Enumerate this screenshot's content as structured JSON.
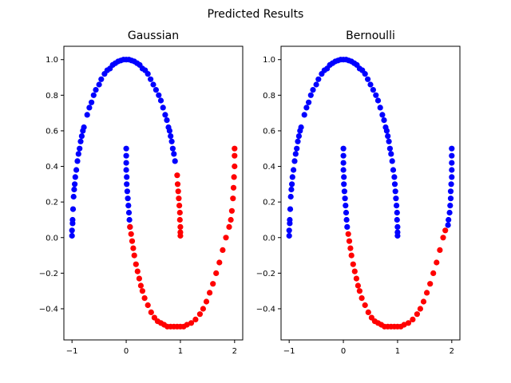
{
  "suptitle": "Predicted Results",
  "chart_data": [
    {
      "type": "scatter",
      "title": "Gaussian",
      "xlabel": "",
      "ylabel": "",
      "xlim": [
        -1.15,
        2.15
      ],
      "ylim": [
        -0.575,
        1.075
      ],
      "xticks": [
        -1,
        0,
        1,
        2
      ],
      "yticks": [
        -0.4,
        -0.2,
        0.0,
        0.2,
        0.4,
        0.6,
        0.8,
        1.0
      ],
      "xtick_labels": [
        "−1",
        "0",
        "1",
        "2"
      ],
      "ytick_labels": [
        "−0.4",
        "−0.2",
        "0.0",
        "0.2",
        "0.4",
        "0.6",
        "0.8",
        "1.0"
      ],
      "grid": false,
      "series": [
        {
          "color": "#0000ff",
          "points": [
            [
              -1.0,
              0.01
            ],
            [
              -1.0,
              0.04
            ],
            [
              -0.99,
              0.08
            ],
            [
              -0.99,
              0.1
            ],
            [
              -0.98,
              0.16
            ],
            [
              -0.97,
              0.23
            ],
            [
              -0.96,
              0.27
            ],
            [
              -0.95,
              0.3
            ],
            [
              -0.94,
              0.34
            ],
            [
              -0.92,
              0.38
            ],
            [
              -0.9,
              0.43
            ],
            [
              -0.88,
              0.47
            ],
            [
              -0.86,
              0.5
            ],
            [
              -0.84,
              0.54
            ],
            [
              -0.82,
              0.57
            ],
            [
              -0.8,
              0.6
            ],
            [
              -0.78,
              0.62
            ],
            [
              -0.72,
              0.69
            ],
            [
              -0.68,
              0.73
            ],
            [
              -0.64,
              0.76
            ],
            [
              -0.6,
              0.8
            ],
            [
              -0.56,
              0.83
            ],
            [
              -0.5,
              0.86
            ],
            [
              -0.46,
              0.89
            ],
            [
              -0.4,
              0.92
            ],
            [
              -0.35,
              0.94
            ],
            [
              -0.3,
              0.95
            ],
            [
              -0.25,
              0.97
            ],
            [
              -0.2,
              0.98
            ],
            [
              -0.15,
              0.99
            ],
            [
              -0.1,
              0.995
            ],
            [
              -0.05,
              1.0
            ],
            [
              0.0,
              1.0
            ],
            [
              0.05,
              1.0
            ],
            [
              0.1,
              0.995
            ],
            [
              0.15,
              0.99
            ],
            [
              0.2,
              0.98
            ],
            [
              0.25,
              0.97
            ],
            [
              0.3,
              0.95
            ],
            [
              0.35,
              0.94
            ],
            [
              0.4,
              0.92
            ],
            [
              0.45,
              0.89
            ],
            [
              0.5,
              0.86
            ],
            [
              0.55,
              0.83
            ],
            [
              0.6,
              0.8
            ],
            [
              0.64,
              0.77
            ],
            [
              0.68,
              0.73
            ],
            [
              0.72,
              0.69
            ],
            [
              0.75,
              0.66
            ],
            [
              0.78,
              0.62
            ],
            [
              0.8,
              0.6
            ],
            [
              0.82,
              0.57
            ],
            [
              0.84,
              0.54
            ],
            [
              0.86,
              0.5
            ],
            [
              0.88,
              0.47
            ],
            [
              0.9,
              0.43
            ],
            [
              0.0,
              0.5
            ],
            [
              0.0,
              0.46
            ],
            [
              0.0,
              0.42
            ],
            [
              0.0,
              0.38
            ],
            [
              0.01,
              0.34
            ],
            [
              0.01,
              0.3
            ],
            [
              0.02,
              0.26
            ],
            [
              0.03,
              0.22
            ],
            [
              0.04,
              0.18
            ],
            [
              0.05,
              0.14
            ],
            [
              0.06,
              0.1
            ],
            [
              0.07,
              0.06
            ]
          ]
        },
        {
          "color": "#ff0000",
          "points": [
            [
              0.07,
              0.06
            ],
            [
              0.09,
              0.02
            ],
            [
              0.11,
              -0.02
            ],
            [
              0.13,
              -0.06
            ],
            [
              0.15,
              -0.1
            ],
            [
              0.18,
              -0.15
            ],
            [
              0.21,
              -0.19
            ],
            [
              0.24,
              -0.23
            ],
            [
              0.27,
              -0.27
            ],
            [
              0.3,
              -0.3
            ],
            [
              0.34,
              -0.34
            ],
            [
              0.4,
              -0.38
            ],
            [
              0.46,
              -0.42
            ],
            [
              0.52,
              -0.45
            ],
            [
              0.58,
              -0.47
            ],
            [
              0.64,
              -0.48
            ],
            [
              0.7,
              -0.49
            ],
            [
              0.76,
              -0.5
            ],
            [
              0.82,
              -0.5
            ],
            [
              0.88,
              -0.5
            ],
            [
              0.94,
              -0.5
            ],
            [
              1.0,
              -0.5
            ],
            [
              1.06,
              -0.5
            ],
            [
              1.12,
              -0.49
            ],
            [
              1.2,
              -0.48
            ],
            [
              1.28,
              -0.46
            ],
            [
              1.36,
              -0.43
            ],
            [
              1.42,
              -0.4
            ],
            [
              1.48,
              -0.36
            ],
            [
              1.54,
              -0.31
            ],
            [
              1.6,
              -0.26
            ],
            [
              1.66,
              -0.2
            ],
            [
              1.72,
              -0.14
            ],
            [
              1.78,
              -0.07
            ],
            [
              1.84,
              0.0
            ],
            [
              1.9,
              0.06
            ],
            [
              1.93,
              0.1
            ],
            [
              1.95,
              0.15
            ],
            [
              1.97,
              0.22
            ],
            [
              1.98,
              0.28
            ],
            [
              1.99,
              0.34
            ],
            [
              2.0,
              0.4
            ],
            [
              2.0,
              0.46
            ],
            [
              2.0,
              0.5
            ],
            [
              0.94,
              0.35
            ],
            [
              0.95,
              0.3
            ],
            [
              0.96,
              0.26
            ],
            [
              0.97,
              0.22
            ],
            [
              0.98,
              0.18
            ],
            [
              0.99,
              0.14
            ],
            [
              0.99,
              0.1
            ],
            [
              1.0,
              0.06
            ],
            [
              1.0,
              0.03
            ],
            [
              1.0,
              0.01
            ]
          ]
        }
      ]
    },
    {
      "type": "scatter",
      "title": "Bernoulli",
      "xlabel": "",
      "ylabel": "",
      "xlim": [
        -1.15,
        2.15
      ],
      "ylim": [
        -0.575,
        1.075
      ],
      "xticks": [
        -1,
        0,
        1,
        2
      ],
      "yticks": [
        -0.4,
        -0.2,
        0.0,
        0.2,
        0.4,
        0.6,
        0.8,
        1.0
      ],
      "xtick_labels": [
        "−1",
        "0",
        "1",
        "2"
      ],
      "ytick_labels": [
        "−0.4",
        "−0.2",
        "0.0",
        "0.2",
        "0.4",
        "0.6",
        "0.8",
        "1.0"
      ],
      "grid": false,
      "series": [
        {
          "color": "#0000ff",
          "points": [
            [
              -1.0,
              0.01
            ],
            [
              -1.0,
              0.04
            ],
            [
              -0.99,
              0.08
            ],
            [
              -0.99,
              0.1
            ],
            [
              -0.98,
              0.16
            ],
            [
              -0.97,
              0.23
            ],
            [
              -0.96,
              0.27
            ],
            [
              -0.95,
              0.3
            ],
            [
              -0.94,
              0.34
            ],
            [
              -0.92,
              0.38
            ],
            [
              -0.9,
              0.43
            ],
            [
              -0.88,
              0.47
            ],
            [
              -0.86,
              0.5
            ],
            [
              -0.84,
              0.54
            ],
            [
              -0.82,
              0.57
            ],
            [
              -0.8,
              0.6
            ],
            [
              -0.78,
              0.62
            ],
            [
              -0.72,
              0.69
            ],
            [
              -0.68,
              0.73
            ],
            [
              -0.64,
              0.76
            ],
            [
              -0.6,
              0.8
            ],
            [
              -0.56,
              0.83
            ],
            [
              -0.5,
              0.86
            ],
            [
              -0.46,
              0.89
            ],
            [
              -0.4,
              0.92
            ],
            [
              -0.35,
              0.94
            ],
            [
              -0.3,
              0.95
            ],
            [
              -0.25,
              0.97
            ],
            [
              -0.2,
              0.98
            ],
            [
              -0.15,
              0.99
            ],
            [
              -0.1,
              0.995
            ],
            [
              -0.05,
              1.0
            ],
            [
              0.0,
              1.0
            ],
            [
              0.05,
              1.0
            ],
            [
              0.1,
              0.995
            ],
            [
              0.15,
              0.99
            ],
            [
              0.2,
              0.98
            ],
            [
              0.25,
              0.97
            ],
            [
              0.3,
              0.95
            ],
            [
              0.35,
              0.94
            ],
            [
              0.4,
              0.92
            ],
            [
              0.45,
              0.89
            ],
            [
              0.5,
              0.86
            ],
            [
              0.55,
              0.83
            ],
            [
              0.6,
              0.8
            ],
            [
              0.64,
              0.77
            ],
            [
              0.68,
              0.73
            ],
            [
              0.72,
              0.69
            ],
            [
              0.75,
              0.66
            ],
            [
              0.78,
              0.62
            ],
            [
              0.8,
              0.6
            ],
            [
              0.82,
              0.57
            ],
            [
              0.84,
              0.54
            ],
            [
              0.86,
              0.5
            ],
            [
              0.88,
              0.47
            ],
            [
              0.9,
              0.43
            ],
            [
              0.92,
              0.38
            ],
            [
              0.94,
              0.34
            ],
            [
              0.95,
              0.3
            ],
            [
              0.96,
              0.26
            ],
            [
              0.97,
              0.22
            ],
            [
              0.98,
              0.18
            ],
            [
              0.99,
              0.14
            ],
            [
              0.99,
              0.1
            ],
            [
              1.0,
              0.06
            ],
            [
              1.0,
              0.03
            ],
            [
              1.0,
              0.01
            ],
            [
              0.0,
              0.5
            ],
            [
              0.0,
              0.46
            ],
            [
              0.0,
              0.42
            ],
            [
              0.0,
              0.38
            ],
            [
              0.01,
              0.34
            ],
            [
              0.01,
              0.3
            ],
            [
              0.02,
              0.26
            ],
            [
              0.03,
              0.22
            ],
            [
              0.04,
              0.18
            ],
            [
              0.05,
              0.14
            ],
            [
              0.06,
              0.1
            ],
            [
              0.07,
              0.06
            ],
            [
              2.0,
              0.5
            ],
            [
              2.0,
              0.46
            ],
            [
              2.0,
              0.42
            ],
            [
              2.0,
              0.38
            ],
            [
              2.0,
              0.34
            ],
            [
              1.99,
              0.3
            ],
            [
              1.98,
              0.26
            ],
            [
              1.98,
              0.22
            ],
            [
              1.97,
              0.18
            ],
            [
              1.96,
              0.14
            ],
            [
              1.94,
              0.1
            ],
            [
              1.93,
              0.07
            ]
          ]
        },
        {
          "color": "#ff0000",
          "points": [
            [
              0.09,
              0.02
            ],
            [
              0.11,
              -0.02
            ],
            [
              0.13,
              -0.06
            ],
            [
              0.15,
              -0.1
            ],
            [
              0.18,
              -0.15
            ],
            [
              0.21,
              -0.19
            ],
            [
              0.24,
              -0.23
            ],
            [
              0.27,
              -0.27
            ],
            [
              0.3,
              -0.3
            ],
            [
              0.34,
              -0.34
            ],
            [
              0.4,
              -0.38
            ],
            [
              0.46,
              -0.42
            ],
            [
              0.52,
              -0.45
            ],
            [
              0.58,
              -0.47
            ],
            [
              0.64,
              -0.48
            ],
            [
              0.7,
              -0.49
            ],
            [
              0.76,
              -0.5
            ],
            [
              0.82,
              -0.5
            ],
            [
              0.88,
              -0.5
            ],
            [
              0.94,
              -0.5
            ],
            [
              1.0,
              -0.5
            ],
            [
              1.06,
              -0.5
            ],
            [
              1.12,
              -0.49
            ],
            [
              1.2,
              -0.48
            ],
            [
              1.28,
              -0.46
            ],
            [
              1.36,
              -0.43
            ],
            [
              1.42,
              -0.4
            ],
            [
              1.48,
              -0.36
            ],
            [
              1.54,
              -0.31
            ],
            [
              1.6,
              -0.26
            ],
            [
              1.66,
              -0.2
            ],
            [
              1.72,
              -0.14
            ],
            [
              1.78,
              -0.07
            ],
            [
              1.84,
              0.0
            ],
            [
              1.88,
              0.04
            ]
          ]
        }
      ]
    }
  ]
}
